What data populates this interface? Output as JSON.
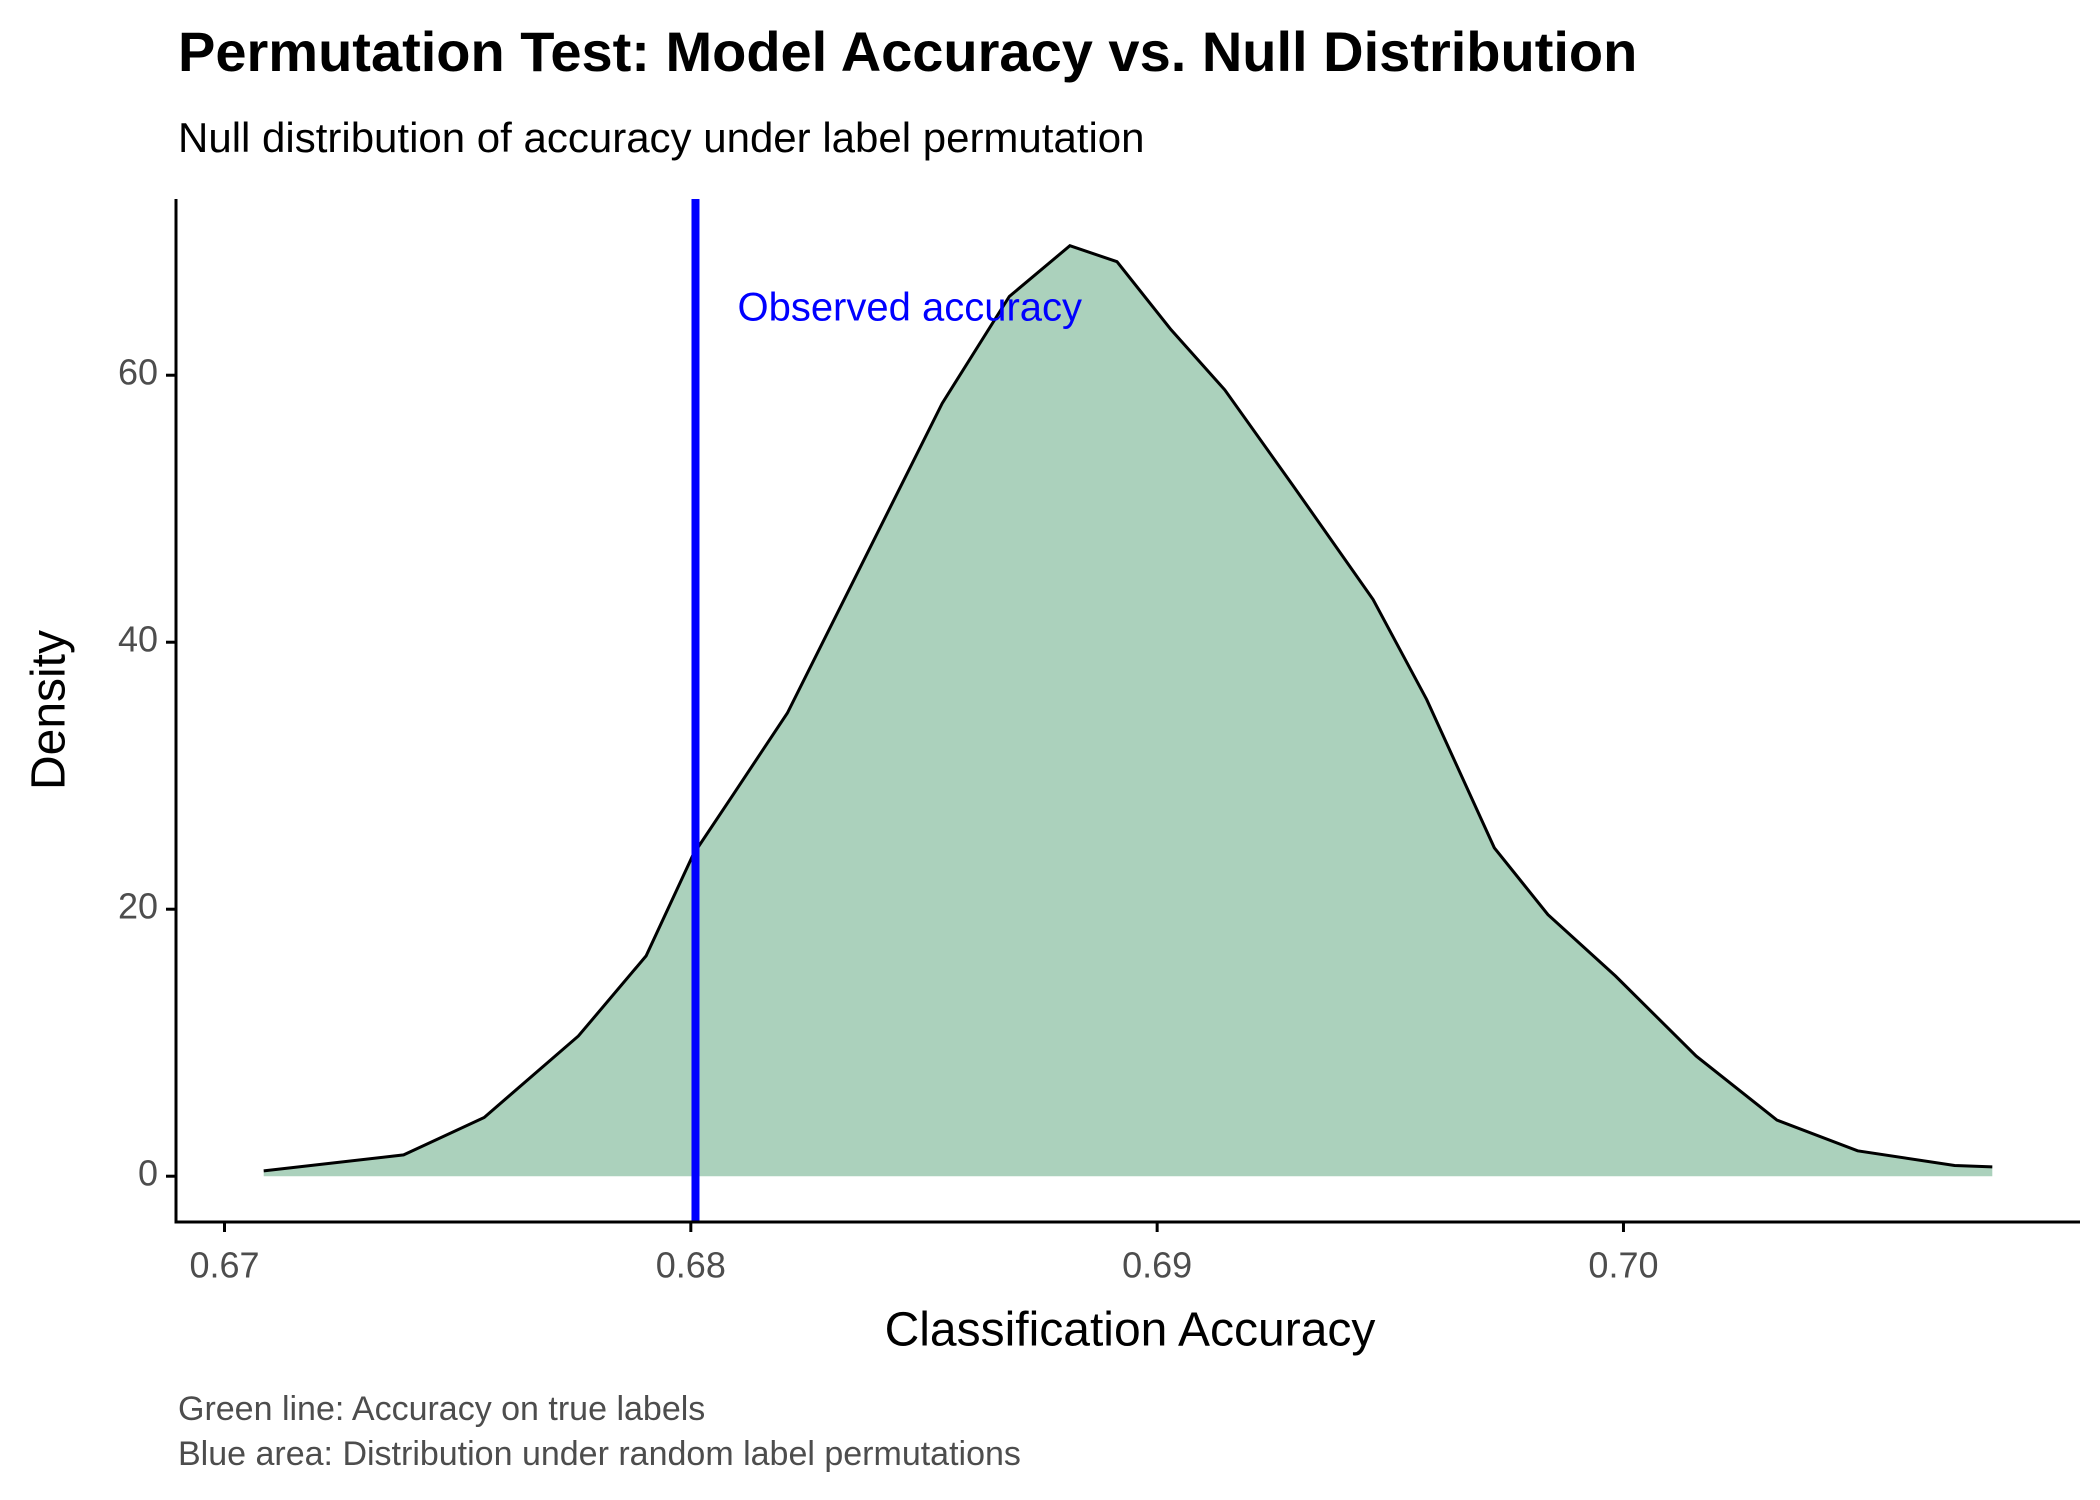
{
  "chart_data": {
    "type": "density",
    "title": "Permutation Test: Model Accuracy vs. Null Distribution",
    "subtitle": "Null distribution of accuracy under label permutation",
    "x_label": "Classification Accuracy",
    "y_label": "Density",
    "caption": [
      "Green line: Accuracy on true labels",
      "Blue area: Distribution under random label permutations"
    ],
    "x": [
      0.67084,
      0.67384,
      0.67557,
      0.67759,
      0.67904,
      0.68005,
      0.68091,
      0.68207,
      0.68366,
      0.68539,
      0.68683,
      0.68813,
      0.68914,
      0.6903,
      0.69145,
      0.6929,
      0.69463,
      0.69578,
      0.69723,
      0.69838,
      0.69983,
      0.70156,
      0.70329,
      0.70502,
      0.7071,
      0.70791
    ],
    "values": [
      0.4,
      1.6,
      4.4,
      10.5,
      16.5,
      24.1,
      28.6,
      34.7,
      45.8,
      57.9,
      65.9,
      69.7,
      68.5,
      63.4,
      58.9,
      51.8,
      43.2,
      35.7,
      24.6,
      19.6,
      15.0,
      9.0,
      4.2,
      1.9,
      0.8,
      0.7
    ],
    "fill_color": "#abd1bc",
    "line_color": "#000000",
    "observed_x": 0.6801,
    "observed_color": "#0000ff",
    "annotation": {
      "text": "Observed accuracy",
      "x": 0.681,
      "y": 64.9
    },
    "xlim": [
      0.66896,
      0.70979
    ],
    "ylim": [
      -3.43,
      73.2
    ],
    "xticks": [
      0.67,
      0.68,
      0.69,
      {
        "value": 0.7,
        "label": "0.70"
      }
    ],
    "yticks": [
      0,
      20,
      40,
      60
    ]
  }
}
